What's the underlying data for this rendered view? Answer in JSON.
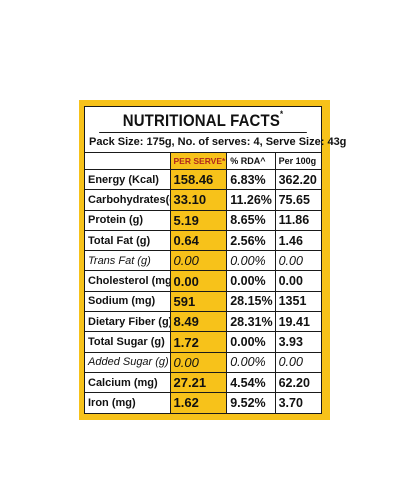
{
  "label": {
    "title": "NUTRITIONAL FACTS",
    "title_mark": "*",
    "pack_info": "Pack Size: 175g, No. of serves: 4, Serve Size: 43g",
    "headers": {
      "per_serve": "PER SERVE*",
      "rda": "% RDA^",
      "per100": "Per 100g"
    },
    "rows": [
      {
        "nutrient": "Energy (Kcal)",
        "per_serve": "158.46",
        "rda": "6.83%",
        "per100": "362.20"
      },
      {
        "nutrient": "Carbohydrates(g)",
        "per_serve": "33.10",
        "rda": "11.26%",
        "per100": "75.65"
      },
      {
        "nutrient": "Protein (g)",
        "per_serve": "5.19",
        "rda": "8.65%",
        "per100": "11.86"
      },
      {
        "nutrient": "Total Fat (g)",
        "per_serve": "0.64",
        "rda": "2.56%",
        "per100": "1.46"
      },
      {
        "nutrient": "Trans Fat (g)",
        "per_serve": "0.00",
        "rda": "0.00%",
        "per100": "0.00",
        "italic": true
      },
      {
        "nutrient": "Cholesterol (mg)",
        "per_serve": "0.00",
        "rda": "0.00%",
        "per100": "0.00"
      },
      {
        "nutrient": "Sodium (mg)",
        "per_serve": "591",
        "rda": "28.15%",
        "per100": "1351"
      },
      {
        "nutrient": "Dietary Fiber (g)",
        "per_serve": "8.49",
        "rda": "28.31%",
        "per100": "19.41"
      },
      {
        "nutrient": "Total Sugar (g)",
        "per_serve": "1.72",
        "rda": "0.00%",
        "per100": "3.93"
      },
      {
        "nutrient": "Added Sugar (g)",
        "per_serve": "0.00",
        "rda": "0.00%",
        "per100": "0.00",
        "italic": true
      },
      {
        "nutrient": "Calcium (mg)",
        "per_serve": "27.21",
        "rda": "4.54%",
        "per100": "62.20"
      },
      {
        "nutrient": "Iron (mg)",
        "per_serve": "1.62",
        "rda": "9.52%",
        "per100": "3.70"
      }
    ]
  },
  "colors": {
    "accent": "#f7c21a",
    "header_red": "#b0281d",
    "text": "#111111",
    "border": "#1a1a1a"
  }
}
